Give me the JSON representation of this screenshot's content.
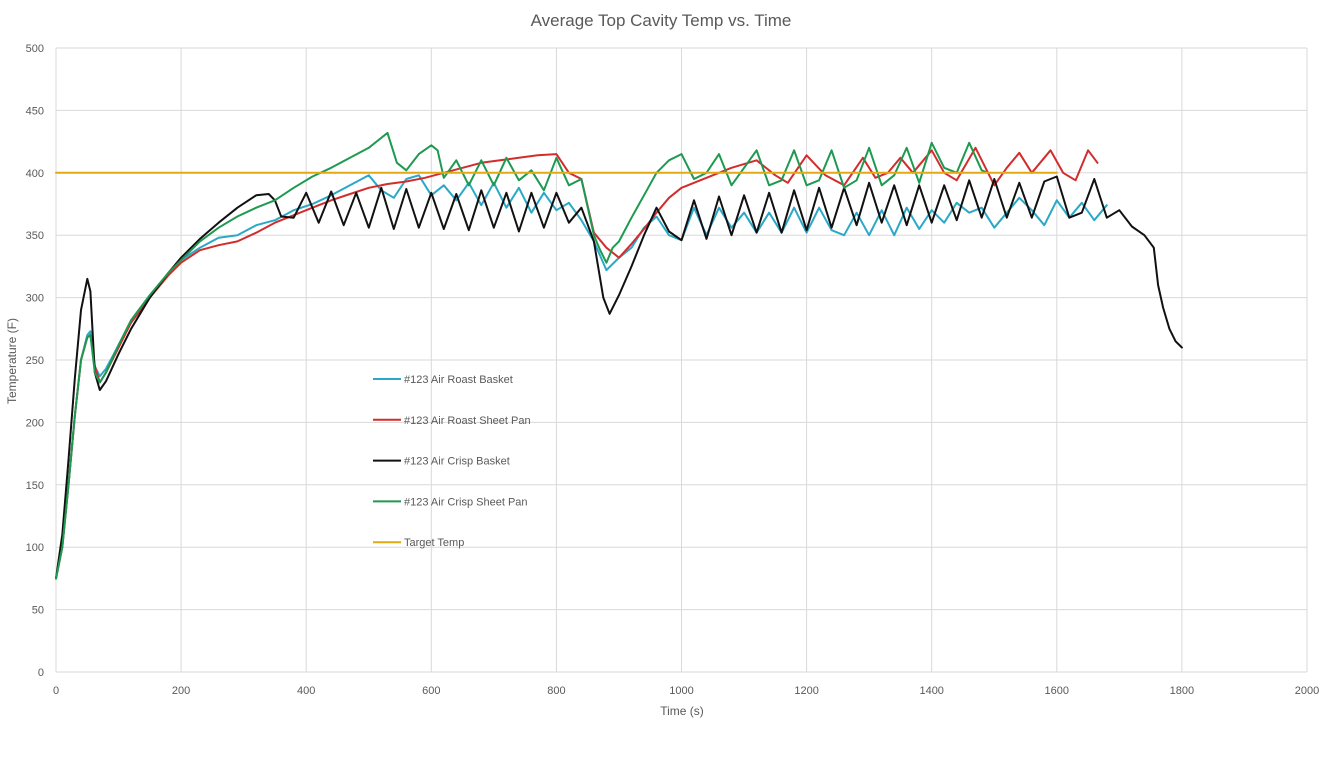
{
  "chart_data": {
    "type": "line",
    "title": "Average Top Cavity Temp vs. Time",
    "xlabel": "Time (s)",
    "ylabel": "Temperature (F)",
    "xlim": [
      0,
      2000
    ],
    "ylim": [
      0,
      500
    ],
    "x_ticks": [
      0,
      200,
      400,
      600,
      800,
      1000,
      1200,
      1400,
      1600,
      1800,
      2000
    ],
    "y_ticks": [
      0,
      50,
      100,
      150,
      200,
      250,
      300,
      350,
      400,
      450,
      500
    ],
    "grid": true,
    "legend_position": "inside-left",
    "series": [
      {
        "name": "#123 Air Roast Basket",
        "color": "#2aa8c8",
        "x": [
          0,
          10,
          20,
          30,
          40,
          50,
          55,
          62,
          70,
          80,
          100,
          120,
          150,
          180,
          200,
          230,
          260,
          290,
          320,
          350,
          380,
          410,
          440,
          470,
          500,
          520,
          540,
          560,
          580,
          600,
          620,
          640,
          660,
          680,
          700,
          720,
          740,
          760,
          780,
          800,
          820,
          840,
          860,
          880,
          900,
          920,
          940,
          960,
          980,
          1000,
          1020,
          1040,
          1060,
          1080,
          1100,
          1120,
          1140,
          1160,
          1180,
          1200,
          1220,
          1240,
          1260,
          1280,
          1300,
          1320,
          1340,
          1360,
          1380,
          1400,
          1420,
          1440,
          1460,
          1480,
          1500,
          1520,
          1540,
          1560,
          1580,
          1600,
          1620,
          1640,
          1660,
          1680
        ],
        "values": [
          75,
          100,
          150,
          205,
          250,
          270,
          273,
          245,
          237,
          243,
          262,
          280,
          300,
          320,
          330,
          340,
          348,
          350,
          358,
          362,
          370,
          375,
          382,
          390,
          398,
          386,
          380,
          395,
          398,
          382,
          390,
          378,
          392,
          374,
          392,
          372,
          388,
          368,
          384,
          370,
          376,
          362,
          345,
          322,
          332,
          340,
          356,
          365,
          350,
          346,
          372,
          350,
          372,
          356,
          368,
          352,
          368,
          352,
          372,
          352,
          372,
          354,
          350,
          368,
          350,
          370,
          350,
          372,
          355,
          370,
          360,
          376,
          368,
          372,
          356,
          368,
          380,
          370,
          358,
          378,
          364,
          376,
          362,
          374
        ]
      },
      {
        "name": "#123 Air Roast Sheet Pan",
        "color": "#d22d2d",
        "x": [
          0,
          10,
          20,
          30,
          40,
          50,
          55,
          62,
          70,
          80,
          100,
          120,
          150,
          180,
          200,
          230,
          260,
          290,
          320,
          350,
          380,
          410,
          440,
          470,
          500,
          530,
          560,
          590,
          620,
          650,
          680,
          710,
          740,
          770,
          800,
          820,
          840,
          860,
          880,
          900,
          920,
          940,
          960,
          980,
          1000,
          1040,
          1080,
          1120,
          1150,
          1170,
          1200,
          1230,
          1260,
          1290,
          1310,
          1330,
          1350,
          1370,
          1400,
          1420,
          1440,
          1470,
          1500,
          1520,
          1540,
          1560,
          1590,
          1610,
          1630,
          1650,
          1665
        ],
        "values": [
          75,
          100,
          150,
          205,
          250,
          268,
          270,
          245,
          232,
          240,
          260,
          280,
          300,
          318,
          328,
          338,
          342,
          345,
          352,
          360,
          366,
          372,
          378,
          383,
          388,
          391,
          393,
          396,
          400,
          404,
          408,
          410,
          412,
          414,
          415,
          400,
          395,
          352,
          340,
          332,
          343,
          355,
          368,
          380,
          388,
          396,
          404,
          410,
          398,
          392,
          414,
          398,
          390,
          412,
          396,
          400,
          412,
          400,
          418,
          400,
          394,
          420,
          390,
          404,
          416,
          400,
          418,
          400,
          394,
          418,
          408
        ]
      },
      {
        "name": "#123 Air Crisp Basket",
        "color": "#111111",
        "x": [
          0,
          10,
          20,
          30,
          40,
          50,
          55,
          62,
          70,
          80,
          100,
          120,
          150,
          180,
          200,
          230,
          260,
          290,
          320,
          340,
          350,
          360,
          380,
          400,
          420,
          440,
          460,
          480,
          500,
          520,
          540,
          560,
          580,
          600,
          620,
          640,
          660,
          680,
          700,
          720,
          740,
          760,
          780,
          800,
          820,
          840,
          860,
          875,
          885,
          900,
          920,
          940,
          960,
          980,
          1000,
          1020,
          1040,
          1060,
          1080,
          1100,
          1120,
          1140,
          1160,
          1180,
          1200,
          1220,
          1240,
          1260,
          1280,
          1300,
          1320,
          1340,
          1360,
          1380,
          1400,
          1420,
          1440,
          1460,
          1480,
          1500,
          1520,
          1540,
          1560,
          1580,
          1600,
          1620,
          1640,
          1660,
          1680,
          1700,
          1720,
          1740,
          1755,
          1762,
          1770,
          1780,
          1790,
          1800
        ],
        "values": [
          75,
          110,
          170,
          235,
          290,
          315,
          305,
          240,
          226,
          233,
          255,
          275,
          300,
          320,
          332,
          347,
          360,
          372,
          382,
          383,
          378,
          365,
          364,
          384,
          360,
          385,
          358,
          384,
          356,
          388,
          355,
          387,
          356,
          384,
          355,
          383,
          354,
          386,
          356,
          384,
          353,
          384,
          356,
          384,
          360,
          372,
          345,
          300,
          287,
          302,
          325,
          350,
          372,
          353,
          346,
          378,
          347,
          381,
          350,
          382,
          352,
          384,
          352,
          386,
          354,
          388,
          356,
          388,
          358,
          392,
          360,
          390,
          358,
          390,
          360,
          390,
          362,
          394,
          364,
          395,
          364,
          392,
          364,
          393,
          397,
          364,
          368,
          395,
          364,
          370,
          357,
          350,
          340,
          310,
          292,
          275,
          265,
          260
        ]
      },
      {
        "name": "#123 Air Crisp Sheet Pan",
        "color": "#1e9a50",
        "x": [
          0,
          10,
          20,
          30,
          40,
          50,
          55,
          62,
          70,
          80,
          100,
          120,
          150,
          180,
          200,
          230,
          260,
          290,
          320,
          350,
          380,
          410,
          440,
          470,
          500,
          530,
          545,
          560,
          580,
          600,
          610,
          620,
          640,
          660,
          680,
          700,
          720,
          740,
          760,
          780,
          800,
          820,
          840,
          860,
          870,
          880,
          890,
          900,
          920,
          940,
          960,
          980,
          1000,
          1020,
          1040,
          1060,
          1080,
          1100,
          1120,
          1140,
          1160,
          1180,
          1200,
          1220,
          1240,
          1260,
          1280,
          1300,
          1320,
          1340,
          1360,
          1380,
          1400,
          1420,
          1440,
          1460,
          1480,
          1490
        ],
        "values": [
          75,
          100,
          150,
          205,
          250,
          268,
          270,
          240,
          232,
          240,
          262,
          282,
          302,
          320,
          330,
          345,
          356,
          365,
          372,
          378,
          388,
          397,
          404,
          412,
          420,
          432,
          408,
          402,
          415,
          422,
          418,
          396,
          410,
          390,
          410,
          390,
          412,
          394,
          402,
          386,
          412,
          390,
          395,
          350,
          338,
          328,
          340,
          345,
          364,
          382,
          400,
          410,
          415,
          395,
          400,
          415,
          390,
          404,
          418,
          390,
          394,
          418,
          390,
          394,
          418,
          388,
          394,
          420,
          390,
          398,
          420,
          392,
          424,
          404,
          400,
          424,
          402,
          400
        ]
      },
      {
        "name": "Target Temp",
        "color": "#e3a913",
        "x": [
          0,
          1600
        ],
        "values": [
          400,
          400
        ]
      }
    ]
  }
}
